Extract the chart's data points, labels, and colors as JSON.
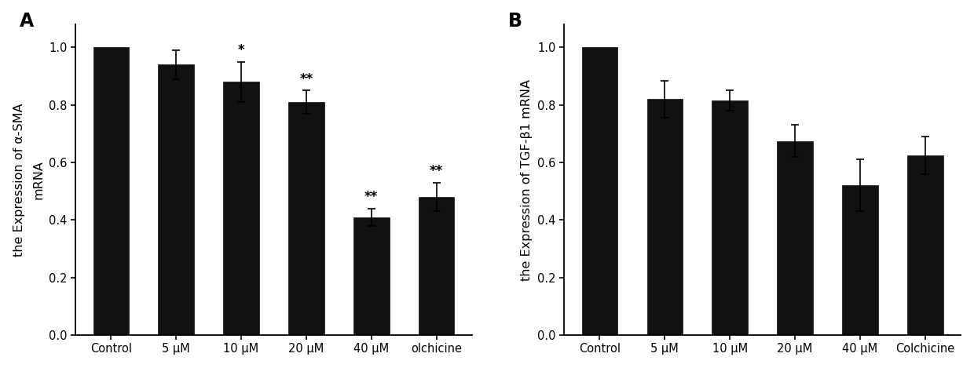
{
  "panel_A": {
    "categories": [
      "Control",
      "5 μM",
      "10 μM",
      "20 μM",
      "40 μM",
      "olchicine"
    ],
    "values": [
      1.0,
      0.94,
      0.88,
      0.81,
      0.41,
      0.48
    ],
    "errors": [
      0.0,
      0.05,
      0.07,
      0.04,
      0.03,
      0.05
    ],
    "significance": [
      "",
      "",
      "*",
      "**",
      "**",
      "**"
    ],
    "ylabel_line1": "the Expression of α-SMA",
    "ylabel_line2": "mRNA",
    "label": "A",
    "ylim": [
      0.0,
      1.08
    ],
    "yticks": [
      0.0,
      0.2,
      0.4,
      0.6,
      0.8,
      1.0
    ]
  },
  "panel_B": {
    "categories": [
      "Control",
      "5 μM",
      "10 μM",
      "20 μM",
      "40 μM",
      "Colchicine"
    ],
    "values": [
      1.0,
      0.82,
      0.815,
      0.675,
      0.52,
      0.625
    ],
    "errors": [
      0.0,
      0.065,
      0.035,
      0.055,
      0.09,
      0.065
    ],
    "significance": [
      "",
      "",
      "",
      "",
      "",
      ""
    ],
    "ylabel_line1": "the Expression of TGF-β1 mRNA",
    "ylabel_line2": "",
    "label": "B",
    "ylim": [
      0.0,
      1.08
    ],
    "yticks": [
      0.0,
      0.2,
      0.4,
      0.6,
      0.8,
      1.0
    ]
  },
  "bar_color": "#111111",
  "bar_width": 0.55,
  "background_color": "#ffffff",
  "tick_fontsize": 10.5,
  "label_fontsize": 11.5,
  "sig_fontsize": 12,
  "panel_label_fontsize": 17
}
